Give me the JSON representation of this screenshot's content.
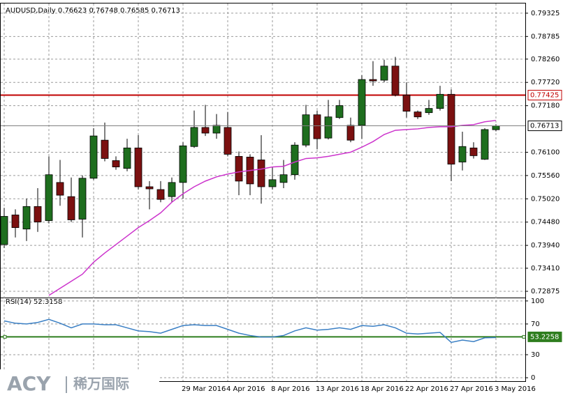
{
  "chart_data": [
    {
      "type": "candlestick",
      "title": "AUDUSD,Daily",
      "x": [
        null,
        null,
        null,
        null,
        null,
        null,
        null,
        null,
        null,
        null,
        null,
        null,
        null,
        null,
        null,
        null,
        "29 Mar 2016",
        null,
        null,
        null,
        "4 Apr 2016",
        null,
        null,
        null,
        "8 Apr 2016",
        null,
        null,
        null,
        "13 Apr 2016",
        null,
        null,
        null,
        "18 Apr 2016",
        null,
        null,
        null,
        "22 Apr 2016",
        null,
        null,
        null,
        "27 Apr 2016",
        null,
        null,
        null,
        "3 May 2016"
      ],
      "open": [
        0.73959,
        0.74646,
        0.74319,
        0.74842,
        0.74515,
        0.75399,
        0.75071,
        0.74548,
        0.75497,
        0.7638,
        0.75906,
        0.75726,
        0.762,
        0.753,
        0.75235,
        0.75071,
        0.75399,
        0.76233,
        0.76675,
        0.76544,
        0.76675,
        0.76004,
        0.75988,
        0.75922,
        0.753,
        0.75399,
        0.75579,
        0.76266,
        0.76969,
        0.76429,
        0.76904,
        0.76724,
        0.76724,
        0.77787,
        0.77771,
        0.78098,
        0.77427,
        0.77035,
        0.77018,
        0.77116,
        0.77444,
        0.75873,
        0.762,
        0.75938,
        0.76623
      ],
      "high": [
        0.7481,
        0.74777,
        0.75022,
        0.75268,
        0.76004,
        0.75922,
        0.75513,
        0.75562,
        0.76658,
        0.76789,
        0.76004,
        0.76413,
        0.76495,
        0.75431,
        0.75431,
        0.75513,
        0.76331,
        0.77067,
        0.77198,
        0.76986,
        0.77035,
        0.76118,
        0.76053,
        0.76495,
        0.75759,
        0.75922,
        0.76331,
        0.77198,
        0.77067,
        0.77313,
        0.77313,
        0.76904,
        0.77885,
        0.78213,
        0.78245,
        0.78311,
        0.77722,
        0.77067,
        0.77313,
        0.7764,
        0.77558,
        0.76577,
        0.76331,
        0.76658,
        0.76748
      ],
      "low": [
        0.73877,
        0.74123,
        0.74041,
        0.74253,
        0.7445,
        0.74859,
        0.74482,
        0.74123,
        0.75464,
        0.75889,
        0.75693,
        0.7566,
        0.75235,
        0.74777,
        0.74941,
        0.74941,
        0.75022,
        0.762,
        0.76478,
        0.76413,
        0.76004,
        0.75104,
        0.75104,
        0.74908,
        0.75235,
        0.75268,
        0.75464,
        0.76217,
        0.76168,
        0.76397,
        0.76871,
        0.76331,
        0.76413,
        0.7764,
        0.77722,
        0.77395,
        0.76904,
        0.76871,
        0.76969,
        0.77067,
        0.75431,
        0.75677,
        0.75955,
        0.75922,
        0.76585
      ],
      "close": [
        0.74613,
        0.74352,
        0.74842,
        0.74482,
        0.75579,
        0.75104,
        0.74532,
        0.75497,
        0.76478,
        0.75955,
        0.75759,
        0.762,
        0.753,
        0.75251,
        0.75006,
        0.75399,
        0.76249,
        0.76675,
        0.76544,
        0.76724,
        0.76053,
        0.75431,
        0.75366,
        0.753,
        0.75464,
        0.75579,
        0.76266,
        0.76969,
        0.76413,
        0.7692,
        0.77182,
        0.7638,
        0.77787,
        0.77754,
        0.78098,
        0.77427,
        0.77051,
        0.7692,
        0.77116,
        0.77444,
        0.75824,
        0.76233,
        0.7602,
        0.76626,
        0.76713
      ],
      "up_color": "#1e6e1e",
      "down_color": "#7b1010",
      "series": [
        {
          "type": "line",
          "color": "#cc33cc",
          "values": [
            null,
            null,
            null,
            null,
            0.72781,
            0.72945,
            0.73108,
            0.73272,
            0.7355,
            0.73763,
            0.73959,
            0.74155,
            0.74352,
            0.74515,
            0.74695,
            0.74941,
            0.75137,
            0.753,
            0.75431,
            0.75529,
            0.75595,
            0.75644,
            0.75677,
            0.75709,
            0.75759,
            0.75775,
            0.75873,
            0.75955,
            0.75971,
            0.76004,
            0.76053,
            0.76102,
            0.76217,
            0.76347,
            0.76511,
            0.76609,
            0.76626,
            0.76642,
            0.76675,
            0.76691,
            0.76691,
            0.76724,
            0.7674,
            0.76806,
            0.76838
          ]
        }
      ],
      "hline": 0.77425,
      "hline_color": "#c00000",
      "ylim": [
        0.7273,
        0.7955
      ],
      "yticks": [
        0.79325,
        0.78785,
        {
          "value": 0.7826,
          "label": "0.78260"
        },
        {
          "value": 0.7772,
          "label": "0.77720"
        },
        {
          "value": 0.7718,
          "label": "0.77180"
        },
        {
          "value": 0.761,
          "label": "0.76100"
        },
        {
          "value": 0.7556,
          "label": "0.75560"
        },
        {
          "value": 0.7502,
          "label": "0.75020"
        },
        {
          "value": 0.7448,
          "label": "0.74480"
        },
        {
          "value": 0.7394,
          "label": "0.73940"
        },
        {
          "value": 0.7341,
          "label": "0.73410"
        },
        0.72875
      ],
      "grid": true
    },
    {
      "type": "line",
      "title": "RSI(14)",
      "color": "#3a7fc4",
      "values": [
        74,
        71,
        70,
        72,
        76,
        71,
        65,
        70,
        70,
        69,
        69,
        65,
        61,
        60,
        58,
        63,
        68,
        69,
        68,
        68,
        63,
        58,
        55,
        53,
        53,
        55,
        61,
        65,
        62,
        63,
        65,
        63,
        68,
        67,
        69,
        65,
        58,
        57,
        58,
        59,
        46,
        49,
        47,
        52,
        52.3158
      ],
      "level": 53.2258,
      "level_color": "#2e7d1e",
      "ylim": [
        -4.5,
        103.5
      ],
      "yticks": [
        100,
        70,
        30,
        0
      ],
      "grid": true
    }
  ],
  "watermark": {
    "brand": "ACY",
    "name": "稀万国际"
  }
}
